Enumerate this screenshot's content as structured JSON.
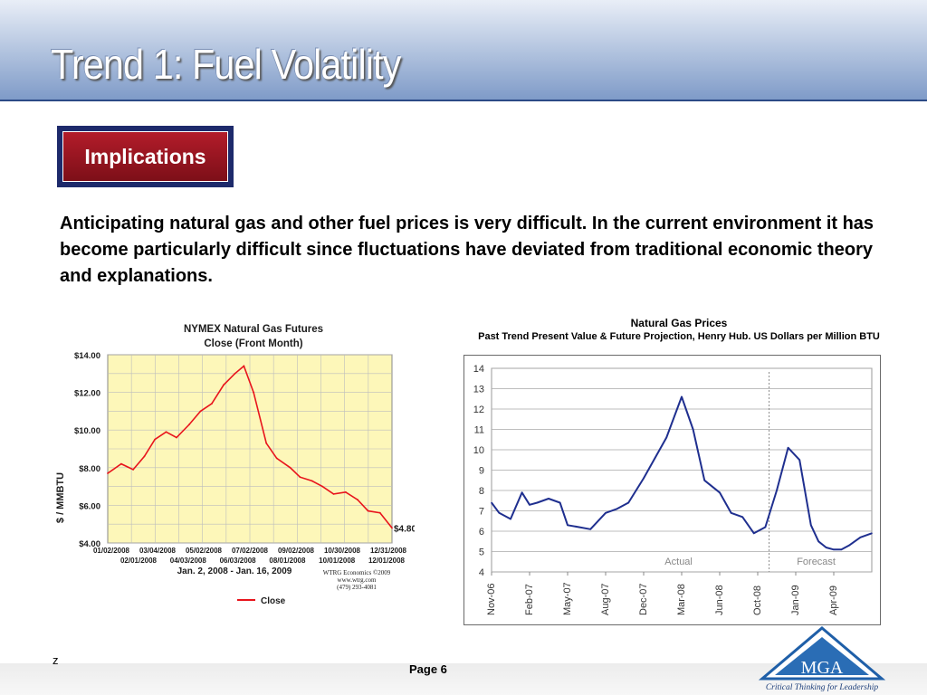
{
  "header": {
    "title": "Trend 1:  Fuel Volatility"
  },
  "implications": {
    "label": "Implications"
  },
  "body": {
    "text": "Anticipating natural gas and other fuel prices is very difficult.  In the current environment it has become particularly difficult since fluctuations have deviated from traditional economic theory and explanations."
  },
  "footer": {
    "page": "Page 6",
    "mark": "z"
  },
  "logo": {
    "letters": "MGA",
    "tagline": "Critical Thinking for Leadership"
  },
  "chart_data": [
    {
      "type": "line",
      "title": "NYMEX Natural Gas Futures",
      "subtitle": "Close (Front Month)",
      "ylabel": "$ / MMBTU",
      "ylim": [
        4,
        14
      ],
      "y_tick_labels": [
        "$14.00",
        "$12.00",
        "$10.00",
        "$8.00",
        "$6.00",
        "$4.00"
      ],
      "x_tick_labels_top": [
        "01/02/2008",
        "03/04/2008",
        "05/02/2008",
        "07/02/2008",
        "09/02/2008",
        "10/30/2008",
        "12/31/2008"
      ],
      "x_tick_labels_bottom": [
        "02/01/2008",
        "04/03/2008",
        "06/03/2008",
        "08/01/2008",
        "10/01/2008",
        "12/01/2008"
      ],
      "date_range": "Jan. 2, 2008 - Jan. 16, 2009",
      "source_lines": [
        "WTRG Economics  ©2009",
        "www.wtrg.com",
        "(479) 293-4081"
      ],
      "end_label": "$4.801",
      "grid": true,
      "background": "#fdf7b9",
      "series": [
        {
          "name": "Close",
          "color": "#e8141c",
          "x": [
            "2008-01-02",
            "2008-01-20",
            "2008-02-05",
            "2008-02-20",
            "2008-03-05",
            "2008-03-20",
            "2008-04-03",
            "2008-04-20",
            "2008-05-05",
            "2008-05-20",
            "2008-06-05",
            "2008-06-20",
            "2008-07-02",
            "2008-07-15",
            "2008-08-01",
            "2008-08-15",
            "2008-09-02",
            "2008-09-15",
            "2008-10-01",
            "2008-10-15",
            "2008-10-30",
            "2008-11-15",
            "2008-12-01",
            "2008-12-15",
            "2008-12-31",
            "2009-01-16"
          ],
          "values": [
            7.7,
            8.2,
            7.9,
            8.6,
            9.5,
            9.9,
            9.6,
            10.3,
            11.0,
            11.4,
            12.4,
            13.0,
            13.4,
            12.0,
            9.3,
            8.5,
            8.0,
            7.5,
            7.3,
            7.0,
            6.6,
            6.7,
            6.3,
            5.7,
            5.6,
            4.8
          ]
        }
      ]
    },
    {
      "type": "line",
      "title": "Natural Gas Prices",
      "subtitle": "Past Trend Present Value & Future Projection, Henry Hub. US Dollars per Million BTU",
      "ylim": [
        4,
        14
      ],
      "y_ticks": [
        4,
        5,
        6,
        7,
        8,
        9,
        10,
        11,
        12,
        13,
        14
      ],
      "x_tick_labels": [
        "Nov-06",
        "Feb-07",
        "May-07",
        "Aug-07",
        "Dec-07",
        "Mar-08",
        "Jun-08",
        "Oct-08",
        "Jan-09",
        "Apr-09"
      ],
      "annotations": [
        "Actual",
        "Forecast"
      ],
      "grid": true,
      "series": [
        {
          "color": "#1f2f8f",
          "x": [
            0,
            0.2,
            0.5,
            0.8,
            1.0,
            1.2,
            1.5,
            1.8,
            2.0,
            2.3,
            2.6,
            3.0,
            3.3,
            3.6,
            3.8,
            4.0,
            4.3,
            4.6,
            5.0,
            5.3,
            5.6,
            6.0,
            6.3,
            6.6,
            6.9,
            7.2,
            7.5,
            7.8,
            8.1,
            8.4,
            8.6,
            8.8,
            9.0,
            9.2,
            9.4,
            9.7,
            10.0
          ],
          "values": [
            7.4,
            6.9,
            6.6,
            7.9,
            7.3,
            7.4,
            7.6,
            7.4,
            6.3,
            6.2,
            6.1,
            6.9,
            7.1,
            7.4,
            8.0,
            8.6,
            9.6,
            10.6,
            12.6,
            11.0,
            8.5,
            7.9,
            6.9,
            6.7,
            5.9,
            6.2,
            8.0,
            10.1,
            9.5,
            6.3,
            5.5,
            5.2,
            5.1,
            5.1,
            5.3,
            5.7,
            5.9
          ]
        }
      ],
      "divider_after_index": 7.3
    }
  ]
}
